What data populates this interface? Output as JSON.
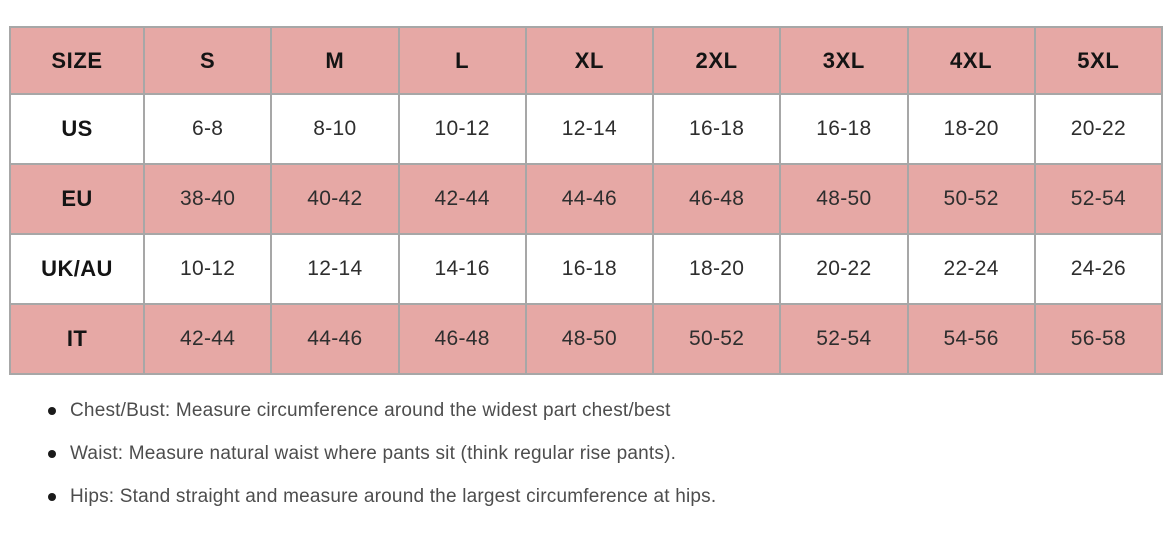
{
  "table": {
    "header": [
      "SIZE",
      "S",
      "M",
      "L",
      "XL",
      "2XL",
      "3XL",
      "4XL",
      "5XL"
    ],
    "rows": [
      {
        "label": "US",
        "values": [
          "6-8",
          "8-10",
          "10-12",
          "12-14",
          "16-18",
          "16-18",
          "18-20",
          "20-22"
        ]
      },
      {
        "label": "EU",
        "values": [
          "38-40",
          "40-42",
          "42-44",
          "44-46",
          "46-48",
          "48-50",
          "50-52",
          "52-54"
        ]
      },
      {
        "label": "UK/AU",
        "values": [
          "10-12",
          "12-14",
          "14-16",
          "16-18",
          "18-20",
          "20-22",
          "22-24",
          "24-26"
        ]
      },
      {
        "label": "IT",
        "values": [
          "42-44",
          "44-46",
          "46-48",
          "48-50",
          "50-52",
          "52-54",
          "54-56",
          "56-58"
        ]
      }
    ]
  },
  "notes": [
    "Chest/Bust: Measure circumference around the widest part chest/best",
    "Waist: Measure natural waist where pants sit (think regular rise pants).",
    "Hips: Stand straight and measure around the largest circumference at hips."
  ],
  "colors": {
    "row_pink": "#e6a8a5",
    "border": "#a7a7a7",
    "label_text": "#141414",
    "cell_text": "#2e2e2e",
    "note_text": "#4d4d4d"
  }
}
